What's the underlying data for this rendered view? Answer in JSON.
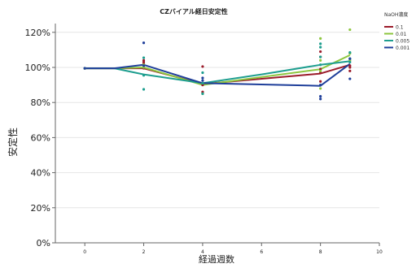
{
  "chart_data": {
    "type": "line",
    "title": "CZバイアル経日安定性",
    "xlabel": "経過週数",
    "ylabel": "安定性",
    "xlim": [
      -1,
      10
    ],
    "ylim": [
      0,
      125
    ],
    "x_ticks": [
      0,
      2,
      4,
      6,
      8,
      10
    ],
    "y_ticks": [
      0,
      20,
      40,
      60,
      80,
      100,
      120
    ],
    "y_tick_labels": [
      "0%",
      "20%",
      "40%",
      "60%",
      "80%",
      "100%",
      "120%"
    ],
    "grid": "horizontal",
    "legend": {
      "title": "NaOH濃度",
      "placement": "top-right"
    },
    "series": [
      {
        "name": "0.1",
        "color": "#9b1b2a",
        "line": [
          [
            0,
            99.5
          ],
          [
            1,
            99.5
          ],
          [
            2,
            99.5
          ],
          [
            4,
            90.5
          ],
          [
            8,
            96.5
          ],
          [
            9,
            101.5
          ]
        ],
        "points": [
          [
            0,
            99.5
          ],
          [
            2,
            104
          ],
          [
            2,
            103
          ],
          [
            2,
            102
          ],
          [
            2,
            99.5
          ],
          [
            4,
            100.5
          ],
          [
            4,
            90
          ],
          [
            4,
            86
          ],
          [
            8,
            109
          ],
          [
            8,
            106
          ],
          [
            8,
            99
          ],
          [
            8,
            97
          ],
          [
            8,
            92
          ],
          [
            9,
            101
          ],
          [
            9,
            100
          ],
          [
            9,
            98
          ]
        ]
      },
      {
        "name": "0.01",
        "color": "#8dc63f",
        "line": [
          [
            0,
            99.5
          ],
          [
            1,
            99.5
          ],
          [
            2,
            100
          ],
          [
            4,
            90
          ],
          [
            8,
            99
          ],
          [
            9,
            107
          ]
        ],
        "points": [
          [
            0,
            99.5
          ],
          [
            2,
            101.5
          ],
          [
            2,
            100
          ],
          [
            4,
            91
          ],
          [
            4,
            85
          ],
          [
            8,
            116.5
          ],
          [
            8,
            104
          ],
          [
            8,
            98
          ],
          [
            8,
            88
          ],
          [
            9,
            121.5
          ],
          [
            9,
            108
          ],
          [
            9,
            104
          ]
        ]
      },
      {
        "name": "0.005",
        "color": "#1e9e8f",
        "line": [
          [
            0,
            99.5
          ],
          [
            1,
            99.5
          ],
          [
            2,
            96
          ],
          [
            4,
            91
          ],
          [
            6,
            96
          ],
          [
            8,
            101.5
          ],
          [
            9,
            103.5
          ]
        ],
        "points": [
          [
            0,
            99.5
          ],
          [
            2,
            105.5
          ],
          [
            2,
            95.5
          ],
          [
            2,
            87.5
          ],
          [
            4,
            97
          ],
          [
            4,
            91
          ],
          [
            4,
            85
          ],
          [
            8,
            113.5
          ],
          [
            8,
            111.5
          ],
          [
            8,
            106
          ],
          [
            8,
            101.5
          ],
          [
            9,
            108.5
          ],
          [
            9,
            105
          ],
          [
            9,
            103
          ]
        ]
      },
      {
        "name": "0.001",
        "color": "#1f3f9a",
        "line": [
          [
            0,
            99.5
          ],
          [
            1,
            99.5
          ],
          [
            2,
            101.5
          ],
          [
            4,
            91
          ],
          [
            8,
            89.5
          ],
          [
            9,
            102
          ]
        ],
        "points": [
          [
            0,
            99.5
          ],
          [
            2,
            114
          ],
          [
            2,
            101
          ],
          [
            4,
            94
          ],
          [
            4,
            92.5
          ],
          [
            8,
            90
          ],
          [
            8,
            83.5
          ],
          [
            8,
            82
          ],
          [
            9,
            105
          ],
          [
            9,
            93.5
          ]
        ]
      }
    ]
  }
}
